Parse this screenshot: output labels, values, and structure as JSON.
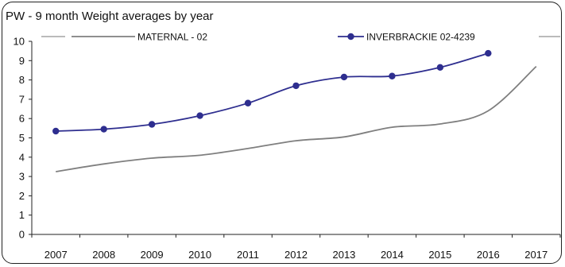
{
  "chart_data": {
    "type": "line",
    "title": "PW - 9 month Weight averages by year",
    "xlabel": "",
    "ylabel": "",
    "categories": [
      "2007",
      "2008",
      "2009",
      "2010",
      "2011",
      "2012",
      "2013",
      "2014",
      "2015",
      "2016",
      "2017"
    ],
    "ylim": [
      0,
      10
    ],
    "yticks": [
      0,
      1,
      2,
      3,
      4,
      5,
      6,
      7,
      8,
      9,
      10
    ],
    "grid": false,
    "legend": "top",
    "series": [
      {
        "name": "MATERNAL - 02",
        "color": "#7f7f7f",
        "marker": "none",
        "values": [
          3.25,
          3.65,
          3.95,
          4.1,
          4.45,
          4.85,
          5.05,
          5.55,
          5.72,
          6.4,
          8.7
        ]
      },
      {
        "name": "INVERBRACKIE 02-4239",
        "color": "#2e2e8f",
        "marker": "circle",
        "values": [
          5.35,
          5.45,
          5.7,
          6.15,
          6.8,
          7.7,
          8.15,
          8.2,
          8.65,
          9.38,
          null
        ]
      }
    ]
  }
}
